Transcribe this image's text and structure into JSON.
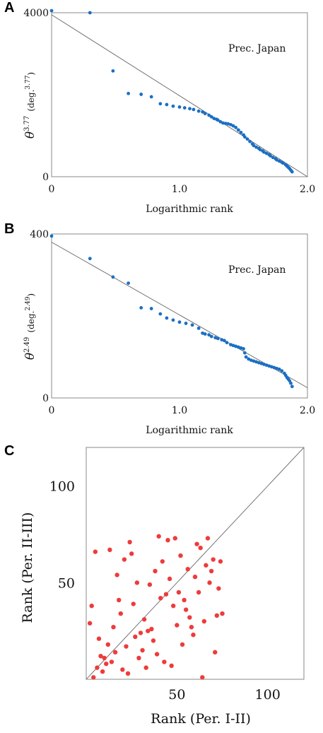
{
  "panels": {
    "a": "A",
    "b": "B",
    "c": "C"
  },
  "colors": {
    "blue": "#1a6fc4",
    "red": "#ee3b3b",
    "frame": "#888888",
    "fit": "#666666"
  },
  "chart_data": [
    {
      "type": "scatter",
      "annotation": "Prec. Japan",
      "xlabel": "Logarithmic rank",
      "ylabel_base": "θ",
      "ylabel_exp": "3.77",
      "ylabel_unit": "(deg.",
      "ylabel_unit_exp": "3.77",
      "ylabel_close": ")",
      "xticks": [
        0,
        1.0,
        2.0
      ],
      "xtick_labels": [
        "0",
        "1.0",
        "2.0"
      ],
      "yticks": [
        0,
        4000
      ],
      "ytick_labels": [
        "0",
        "4000"
      ],
      "xlim": [
        0,
        2.0
      ],
      "ylim": [
        0,
        4000
      ],
      "fit_line": [
        [
          0,
          3950
        ],
        [
          2.0,
          0
        ]
      ],
      "points": [
        [
          0,
          4050
        ],
        [
          0.3,
          4000
        ],
        [
          0.48,
          2580
        ],
        [
          0.6,
          2030
        ],
        [
          0.7,
          2010
        ],
        [
          0.78,
          1950
        ],
        [
          0.85,
          1780
        ],
        [
          0.9,
          1760
        ],
        [
          0.95,
          1720
        ],
        [
          1.0,
          1700
        ],
        [
          1.04,
          1680
        ],
        [
          1.08,
          1660
        ],
        [
          1.11,
          1640
        ],
        [
          1.15,
          1600
        ],
        [
          1.18,
          1580
        ],
        [
          1.2,
          1540
        ],
        [
          1.23,
          1500
        ],
        [
          1.25,
          1460
        ],
        [
          1.27,
          1420
        ],
        [
          1.29,
          1400
        ],
        [
          1.3,
          1380
        ],
        [
          1.32,
          1340
        ],
        [
          1.34,
          1310
        ],
        [
          1.36,
          1300
        ],
        [
          1.38,
          1290
        ],
        [
          1.4,
          1270
        ],
        [
          1.42,
          1240
        ],
        [
          1.44,
          1200
        ],
        [
          1.46,
          1140
        ],
        [
          1.48,
          1080
        ],
        [
          1.5,
          1020
        ],
        [
          1.51,
          970
        ],
        [
          1.53,
          920
        ],
        [
          1.55,
          860
        ],
        [
          1.57,
          800
        ],
        [
          1.58,
          760
        ],
        [
          1.6,
          720
        ],
        [
          1.62,
          690
        ],
        [
          1.63,
          660
        ],
        [
          1.65,
          630
        ],
        [
          1.66,
          600
        ],
        [
          1.68,
          570
        ],
        [
          1.7,
          540
        ],
        [
          1.71,
          510
        ],
        [
          1.73,
          470
        ],
        [
          1.75,
          440
        ],
        [
          1.76,
          410
        ],
        [
          1.78,
          380
        ],
        [
          1.8,
          350
        ],
        [
          1.81,
          330
        ],
        [
          1.83,
          290
        ],
        [
          1.84,
          260
        ],
        [
          1.85,
          230
        ],
        [
          1.86,
          200
        ],
        [
          1.87,
          160
        ],
        [
          1.88,
          120
        ]
      ]
    },
    {
      "type": "scatter",
      "annotation": "Prec. Japan",
      "xlabel": "Logarithmic rank",
      "ylabel_base": "θ",
      "ylabel_exp": "2.49",
      "ylabel_unit": "(deg.",
      "ylabel_unit_exp": "2.49",
      "ylabel_close": ")",
      "xticks": [
        0,
        1.0,
        2.0
      ],
      "xtick_labels": [
        "0",
        "1.0",
        "2.0"
      ],
      "yticks": [
        0,
        400
      ],
      "ytick_labels": [
        "0",
        "400"
      ],
      "xlim": [
        0,
        2.0
      ],
      "ylim": [
        0,
        400
      ],
      "fit_line": [
        [
          0,
          380
        ],
        [
          2.0,
          25
        ]
      ],
      "points": [
        [
          0,
          395
        ],
        [
          0.3,
          340
        ],
        [
          0.48,
          295
        ],
        [
          0.6,
          280
        ],
        [
          0.7,
          220
        ],
        [
          0.78,
          218
        ],
        [
          0.85,
          205
        ],
        [
          0.9,
          195
        ],
        [
          0.95,
          190
        ],
        [
          1.0,
          185
        ],
        [
          1.05,
          182
        ],
        [
          1.1,
          178
        ],
        [
          1.15,
          170
        ],
        [
          1.18,
          158
        ],
        [
          1.2,
          156
        ],
        [
          1.23,
          154
        ],
        [
          1.25,
          150
        ],
        [
          1.28,
          147
        ],
        [
          1.3,
          145
        ],
        [
          1.33,
          142
        ],
        [
          1.35,
          140
        ],
        [
          1.37,
          135
        ],
        [
          1.4,
          130
        ],
        [
          1.42,
          128
        ],
        [
          1.44,
          126
        ],
        [
          1.46,
          124
        ],
        [
          1.48,
          122
        ],
        [
          1.5,
          120
        ],
        [
          1.51,
          110
        ],
        [
          1.52,
          100
        ],
        [
          1.54,
          95
        ],
        [
          1.56,
          92
        ],
        [
          1.58,
          90
        ],
        [
          1.6,
          88
        ],
        [
          1.62,
          86
        ],
        [
          1.64,
          84
        ],
        [
          1.66,
          82
        ],
        [
          1.68,
          80
        ],
        [
          1.7,
          78
        ],
        [
          1.72,
          76
        ],
        [
          1.74,
          74
        ],
        [
          1.76,
          72
        ],
        [
          1.78,
          70
        ],
        [
          1.8,
          66
        ],
        [
          1.82,
          60
        ],
        [
          1.83,
          55
        ],
        [
          1.84,
          50
        ],
        [
          1.85,
          46
        ],
        [
          1.86,
          42
        ],
        [
          1.87,
          36
        ],
        [
          1.88,
          28
        ]
      ]
    },
    {
      "type": "scatter",
      "xlabel": "Rank (Per. I-II)",
      "ylabel": "Rank (Per. II-III)",
      "xticks": [
        50,
        100
      ],
      "xtick_labels": [
        "50",
        "100"
      ],
      "yticks": [
        50,
        100
      ],
      "ytick_labels": [
        "50",
        "100"
      ],
      "xlim": [
        0,
        120
      ],
      "ylim": [
        0,
        120
      ],
      "fit_line": [
        [
          0,
          0
        ],
        [
          120,
          120
        ]
      ],
      "points": [
        [
          2,
          29
        ],
        [
          3,
          38
        ],
        [
          4,
          1
        ],
        [
          5,
          66
        ],
        [
          6,
          6
        ],
        [
          7,
          21
        ],
        [
          8,
          12
        ],
        [
          9,
          4
        ],
        [
          10,
          11
        ],
        [
          11,
          8
        ],
        [
          12,
          18
        ],
        [
          13,
          67
        ],
        [
          14,
          9
        ],
        [
          15,
          27
        ],
        [
          16,
          14
        ],
        [
          17,
          54
        ],
        [
          18,
          41
        ],
        [
          19,
          34
        ],
        [
          20,
          5
        ],
        [
          21,
          62
        ],
        [
          22,
          17
        ],
        [
          23,
          3
        ],
        [
          24,
          71
        ],
        [
          25,
          65
        ],
        [
          26,
          39
        ],
        [
          27,
          22
        ],
        [
          28,
          50
        ],
        [
          29,
          11
        ],
        [
          30,
          24
        ],
        [
          31,
          15
        ],
        [
          32,
          31
        ],
        [
          33,
          6
        ],
        [
          34,
          25
        ],
        [
          35,
          49
        ],
        [
          36,
          26
        ],
        [
          37,
          20
        ],
        [
          38,
          56
        ],
        [
          39,
          13
        ],
        [
          40,
          74
        ],
        [
          41,
          42
        ],
        [
          42,
          61
        ],
        [
          43,
          9
        ],
        [
          44,
          44
        ],
        [
          45,
          72
        ],
        [
          46,
          52
        ],
        [
          47,
          7
        ],
        [
          48,
          38
        ],
        [
          49,
          73
        ],
        [
          50,
          28
        ],
        [
          51,
          45
        ],
        [
          52,
          64
        ],
        [
          53,
          18
        ],
        [
          54,
          41
        ],
        [
          55,
          36
        ],
        [
          56,
          57
        ],
        [
          57,
          32
        ],
        [
          58,
          27
        ],
        [
          59,
          23
        ],
        [
          60,
          53
        ],
        [
          61,
          70
        ],
        [
          62,
          45
        ],
        [
          63,
          68
        ],
        [
          64,
          1
        ],
        [
          65,
          30
        ],
        [
          66,
          59
        ],
        [
          67,
          73
        ],
        [
          68,
          50
        ],
        [
          69,
          56
        ],
        [
          70,
          62
        ],
        [
          71,
          14
        ],
        [
          72,
          33
        ],
        [
          73,
          47
        ],
        [
          74,
          61
        ],
        [
          75,
          34
        ]
      ]
    }
  ]
}
